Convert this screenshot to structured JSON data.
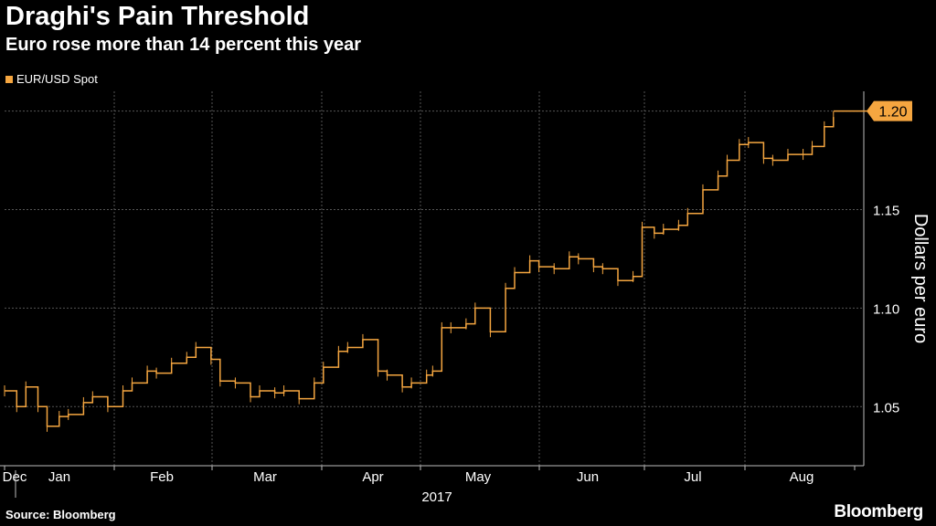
{
  "header": {
    "title": "Draghi's Pain Threshold",
    "subtitle": "Euro rose more than 14 percent this year"
  },
  "footer": {
    "source": "Source: Bloomberg",
    "brand": "Bloomberg"
  },
  "colors": {
    "background": "#000000",
    "series": "#f5a640",
    "grid": "#555555",
    "text": "#ffffff"
  },
  "chart_data": {
    "type": "line",
    "title": "Draghi's Pain Threshold",
    "subtitle": "Euro rose more than 14 percent this year",
    "ylabel": "Dollars per euro",
    "ylim": [
      1.02,
      1.21
    ],
    "yticks": [
      "1.05",
      "1.10",
      "1.15"
    ],
    "xticks": [
      "Dec",
      "Jan",
      "Feb",
      "Mar",
      "Apr",
      "May",
      "Jun",
      "Jul",
      "Aug"
    ],
    "year_label": "2017",
    "grid": true,
    "legend": "top-left",
    "last_value_label": "1.20",
    "series": [
      {
        "name": "EUR/USD Spot",
        "x": [
          "2016-12-01",
          "2016-12-05",
          "2016-12-08",
          "2016-12-12",
          "2016-12-15",
          "2016-12-19",
          "2016-12-22",
          "2016-12-27",
          "2016-12-30",
          "2017-01-04",
          "2017-01-09",
          "2017-01-12",
          "2017-01-17",
          "2017-01-20",
          "2017-01-25",
          "2017-01-30",
          "2017-02-02",
          "2017-02-07",
          "2017-02-10",
          "2017-02-15",
          "2017-02-20",
          "2017-02-23",
          "2017-02-28",
          "2017-03-03",
          "2017-03-08",
          "2017-03-13",
          "2017-03-16",
          "2017-03-21",
          "2017-03-24",
          "2017-03-29",
          "2017-04-03",
          "2017-04-06",
          "2017-04-11",
          "2017-04-14",
          "2017-04-19",
          "2017-04-21",
          "2017-04-24",
          "2017-04-27",
          "2017-05-02",
          "2017-05-05",
          "2017-05-10",
          "2017-05-15",
          "2017-05-18",
          "2017-05-23",
          "2017-05-26",
          "2017-05-31",
          "2017-06-05",
          "2017-06-08",
          "2017-06-13",
          "2017-06-16",
          "2017-06-21",
          "2017-06-26",
          "2017-06-29",
          "2017-07-03",
          "2017-07-06",
          "2017-07-11",
          "2017-07-14",
          "2017-07-19",
          "2017-07-24",
          "2017-07-27",
          "2017-07-31",
          "2017-08-03",
          "2017-08-08",
          "2017-08-11",
          "2017-08-16",
          "2017-08-21",
          "2017-08-24",
          "2017-08-28",
          "2017-08-31"
        ],
        "values": [
          1.058,
          1.05,
          1.06,
          1.05,
          1.04,
          1.045,
          1.046,
          1.052,
          1.055,
          1.05,
          1.058,
          1.062,
          1.068,
          1.067,
          1.072,
          1.075,
          1.08,
          1.074,
          1.063,
          1.062,
          1.055,
          1.058,
          1.057,
          1.058,
          1.054,
          1.062,
          1.07,
          1.078,
          1.08,
          1.084,
          1.068,
          1.066,
          1.06,
          1.062,
          1.066,
          1.068,
          1.09,
          1.09,
          1.092,
          1.1,
          1.088,
          1.11,
          1.118,
          1.124,
          1.121,
          1.12,
          1.126,
          1.125,
          1.121,
          1.12,
          1.114,
          1.116,
          1.141,
          1.138,
          1.14,
          1.142,
          1.148,
          1.16,
          1.167,
          1.175,
          1.183,
          1.184,
          1.176,
          1.175,
          1.178,
          1.178,
          1.182,
          1.192,
          1.197
        ]
      }
    ]
  }
}
